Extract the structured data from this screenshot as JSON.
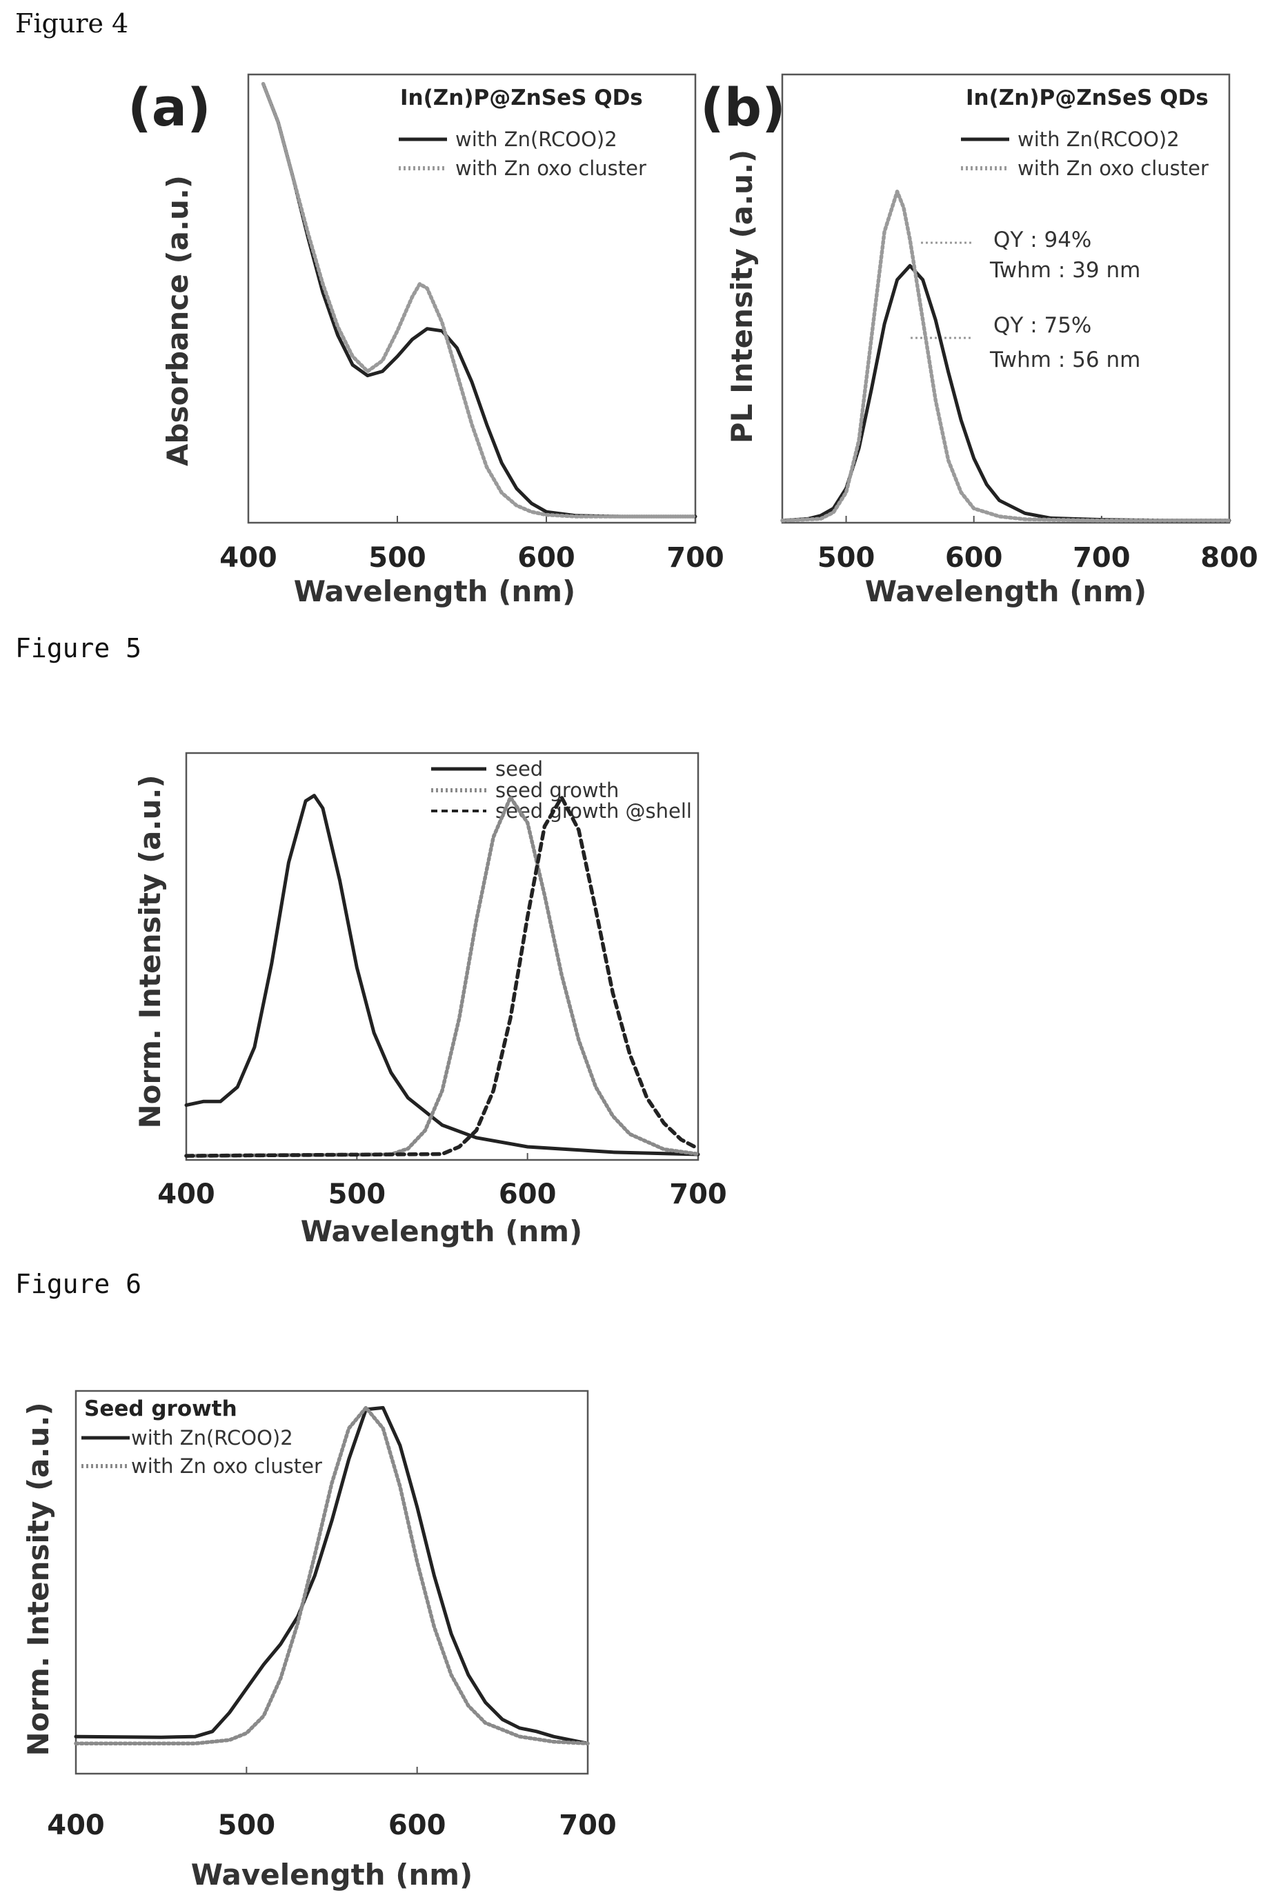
{
  "captions": {
    "fig4": "Figure 4",
    "fig5": "Figure 5",
    "fig6": "Figure 6"
  },
  "chart_data": [
    {
      "id": "fig4a",
      "type": "line",
      "panel_label": "(a)",
      "legend_title": "In(Zn)P@ZnSeS QDs",
      "xlabel": "Wavelength (nm)",
      "ylabel": "Absorbance (a.u.)",
      "xlim": [
        400,
        700
      ],
      "ylim": [
        0,
        1
      ],
      "xticks": [
        400,
        500,
        600,
        700
      ],
      "grid": false,
      "legend_position": "top-right",
      "series": [
        {
          "name": "with Zn(RCOO)2",
          "style": "solid",
          "color": "#222222",
          "x": [
            410,
            420,
            430,
            440,
            450,
            460,
            470,
            480,
            490,
            500,
            510,
            520,
            530,
            540,
            550,
            560,
            570,
            580,
            590,
            600,
            620,
            650,
            700
          ],
          "y": [
            1.02,
            0.93,
            0.8,
            0.66,
            0.53,
            0.43,
            0.36,
            0.335,
            0.345,
            0.38,
            0.42,
            0.445,
            0.44,
            0.4,
            0.32,
            0.22,
            0.13,
            0.07,
            0.035,
            0.015,
            0.006,
            0.004,
            0.004
          ]
        },
        {
          "name": "with Zn oxo cluster",
          "style": "dotted",
          "color": "#9a9a9a",
          "x": [
            410,
            420,
            430,
            440,
            450,
            460,
            470,
            480,
            490,
            500,
            510,
            515,
            520,
            530,
            540,
            550,
            560,
            570,
            580,
            590,
            600,
            620,
            650,
            700
          ],
          "y": [
            1.02,
            0.93,
            0.8,
            0.67,
            0.55,
            0.45,
            0.38,
            0.345,
            0.37,
            0.44,
            0.52,
            0.55,
            0.54,
            0.46,
            0.34,
            0.22,
            0.12,
            0.06,
            0.03,
            0.015,
            0.008,
            0.004,
            0.004,
            0.004
          ]
        }
      ]
    },
    {
      "id": "fig4b",
      "type": "line",
      "panel_label": "(b)",
      "legend_title": "In(Zn)P@ZnSeS QDs",
      "xlabel": "Wavelength (nm)",
      "ylabel": "PL Intensity (a.u.)",
      "xlim": [
        450,
        800
      ],
      "ylim": [
        0,
        1
      ],
      "xticks": [
        500,
        600,
        700,
        800
      ],
      "grid": false,
      "legend_position": "top-right",
      "annotations": [
        {
          "line1": "QY : 94%",
          "line2": "Twhm : 39 nm"
        },
        {
          "line1": "QY : 75%",
          "line2": "Twhm : 56 nm"
        }
      ],
      "series": [
        {
          "name": "with Zn(RCOO)2",
          "style": "solid",
          "color": "#222222",
          "x": [
            450,
            470,
            480,
            490,
            500,
            510,
            520,
            530,
            540,
            550,
            560,
            570,
            580,
            590,
            600,
            610,
            620,
            640,
            660,
            700,
            750,
            800
          ],
          "y": [
            0.0,
            0.004,
            0.012,
            0.03,
            0.08,
            0.18,
            0.33,
            0.49,
            0.6,
            0.635,
            0.6,
            0.5,
            0.37,
            0.25,
            0.155,
            0.09,
            0.05,
            0.018,
            0.006,
            0.002,
            0.0,
            0.0
          ]
        },
        {
          "name": "with Zn oxo cluster",
          "style": "dotted",
          "color": "#9a9a9a",
          "x": [
            450,
            480,
            490,
            500,
            510,
            520,
            530,
            540,
            545,
            550,
            560,
            570,
            580,
            590,
            600,
            620,
            640,
            700,
            800
          ],
          "y": [
            0.0,
            0.004,
            0.02,
            0.07,
            0.2,
            0.46,
            0.72,
            0.82,
            0.78,
            0.7,
            0.5,
            0.3,
            0.15,
            0.07,
            0.03,
            0.01,
            0.003,
            0.0,
            0.0
          ]
        }
      ]
    },
    {
      "id": "fig5",
      "type": "line",
      "xlabel": "Wavelength (nm)",
      "ylabel": "Norm. Intensity (a.u.)",
      "xlim": [
        400,
        700
      ],
      "ylim": [
        0,
        1
      ],
      "xticks": [
        400,
        500,
        600,
        700
      ],
      "grid": false,
      "legend_position": "top-right",
      "series": [
        {
          "name": "seed",
          "style": "solid",
          "color": "#222222",
          "x": [
            400,
            410,
            420,
            430,
            440,
            450,
            460,
            470,
            475,
            480,
            490,
            500,
            510,
            520,
            530,
            550,
            570,
            600,
            650,
            700
          ],
          "y": [
            0.14,
            0.15,
            0.15,
            0.19,
            0.3,
            0.53,
            0.81,
            0.98,
            0.995,
            0.96,
            0.76,
            0.52,
            0.34,
            0.23,
            0.16,
            0.085,
            0.05,
            0.025,
            0.01,
            0.004
          ]
        },
        {
          "name": "seed growth",
          "style": "dotted",
          "color": "#8a8a8a",
          "x": [
            400,
            520,
            530,
            540,
            550,
            560,
            570,
            580,
            590,
            600,
            610,
            620,
            630,
            640,
            650,
            660,
            680,
            700
          ],
          "y": [
            0.0,
            0.004,
            0.02,
            0.07,
            0.18,
            0.38,
            0.65,
            0.88,
            0.99,
            0.92,
            0.72,
            0.5,
            0.32,
            0.19,
            0.11,
            0.06,
            0.018,
            0.005
          ]
        },
        {
          "name": "seed growth @shell",
          "style": "dashed",
          "color": "#222222",
          "x": [
            400,
            550,
            560,
            570,
            580,
            590,
            600,
            610,
            620,
            630,
            640,
            650,
            660,
            670,
            680,
            690,
            700
          ],
          "y": [
            0.0,
            0.005,
            0.025,
            0.07,
            0.18,
            0.38,
            0.66,
            0.91,
            0.99,
            0.9,
            0.68,
            0.45,
            0.28,
            0.16,
            0.09,
            0.045,
            0.02
          ]
        }
      ]
    },
    {
      "id": "fig6",
      "type": "line",
      "legend_title": "Seed growth",
      "xlabel": "Wavelength (nm)",
      "ylabel": "Norm. Intensity (a.u.)",
      "xlim": [
        400,
        700
      ],
      "ylim": [
        0,
        1
      ],
      "xticks": [
        400,
        500,
        600,
        700
      ],
      "grid": false,
      "legend_position": "top-left",
      "series": [
        {
          "name": "with Zn(RCOO)2",
          "style": "solid",
          "color": "#222222",
          "x": [
            400,
            450,
            470,
            480,
            490,
            500,
            510,
            520,
            530,
            540,
            550,
            560,
            570,
            580,
            590,
            600,
            610,
            620,
            630,
            640,
            650,
            660,
            670,
            680,
            690,
            700
          ],
          "y": [
            0.03,
            0.028,
            0.03,
            0.045,
            0.1,
            0.17,
            0.24,
            0.3,
            0.38,
            0.5,
            0.66,
            0.84,
            0.985,
            0.99,
            0.88,
            0.7,
            0.5,
            0.33,
            0.21,
            0.13,
            0.08,
            0.055,
            0.045,
            0.03,
            0.02,
            0.01
          ]
        },
        {
          "name": "with Zn oxo cluster",
          "style": "dotted",
          "color": "#8a8a8a",
          "x": [
            400,
            470,
            490,
            500,
            510,
            520,
            530,
            540,
            550,
            560,
            570,
            580,
            590,
            600,
            610,
            620,
            630,
            640,
            660,
            680,
            700
          ],
          "y": [
            0.01,
            0.01,
            0.02,
            0.04,
            0.09,
            0.2,
            0.36,
            0.56,
            0.77,
            0.93,
            0.99,
            0.93,
            0.76,
            0.54,
            0.35,
            0.21,
            0.12,
            0.07,
            0.03,
            0.015,
            0.01
          ]
        }
      ]
    }
  ]
}
